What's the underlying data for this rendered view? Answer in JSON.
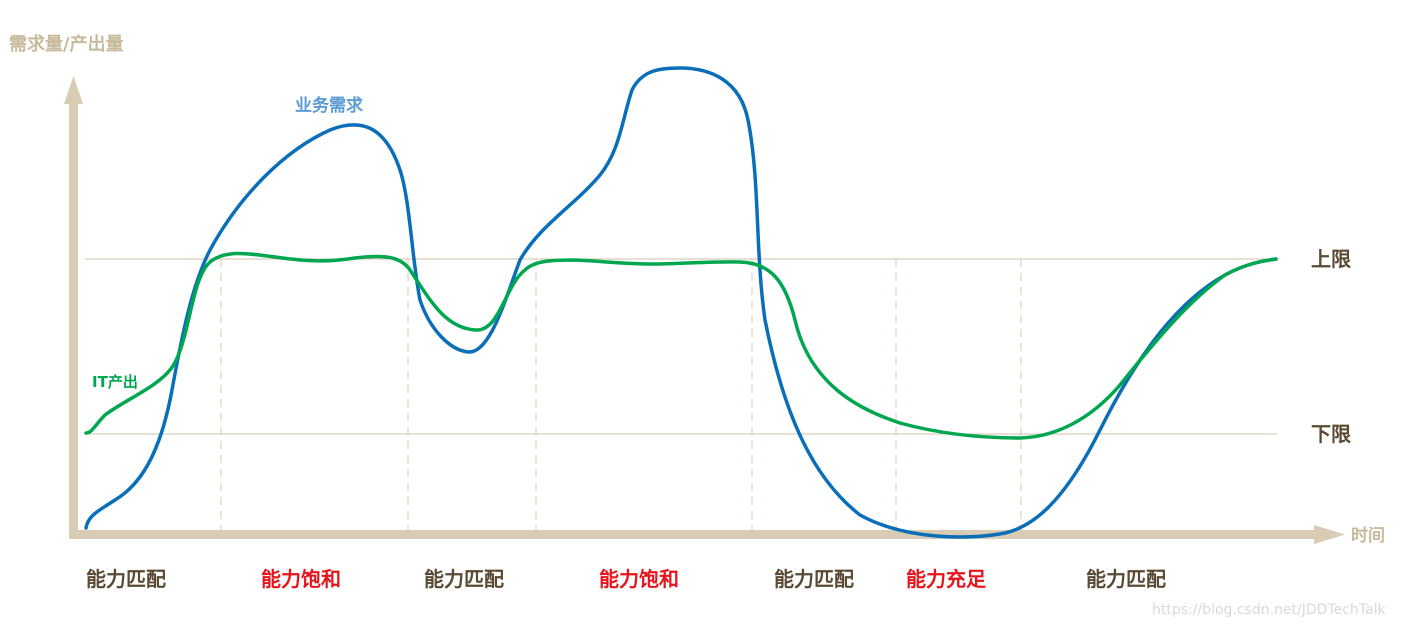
{
  "axes": {
    "y_title": "需求量/产出量",
    "x_title": "时间",
    "axis_color": "#d8ccb4"
  },
  "limits": {
    "upper_label": "上限",
    "lower_label": "下限",
    "line_color": "#cfc3aa"
  },
  "series": {
    "demand": {
      "name": "业务需求",
      "color": "#0a6fb8",
      "label_color": "#5b9bd5"
    },
    "output": {
      "name": "IT产出",
      "color": "#00a650"
    }
  },
  "phases": [
    {
      "label": "能力匹配",
      "color": "#5b4a33"
    },
    {
      "label": "能力饱和",
      "color": "#e8141c"
    },
    {
      "label": "能力匹配",
      "color": "#5b4a33"
    },
    {
      "label": "能力饱和",
      "color": "#e8141c"
    },
    {
      "label": "能力匹配",
      "color": "#5b4a33"
    },
    {
      "label": "能力充足",
      "color": "#e8141c"
    },
    {
      "label": "能力匹配",
      "color": "#5b4a33"
    }
  ],
  "watermark": "https://blog.csdn.net/JDDTechTalk"
}
